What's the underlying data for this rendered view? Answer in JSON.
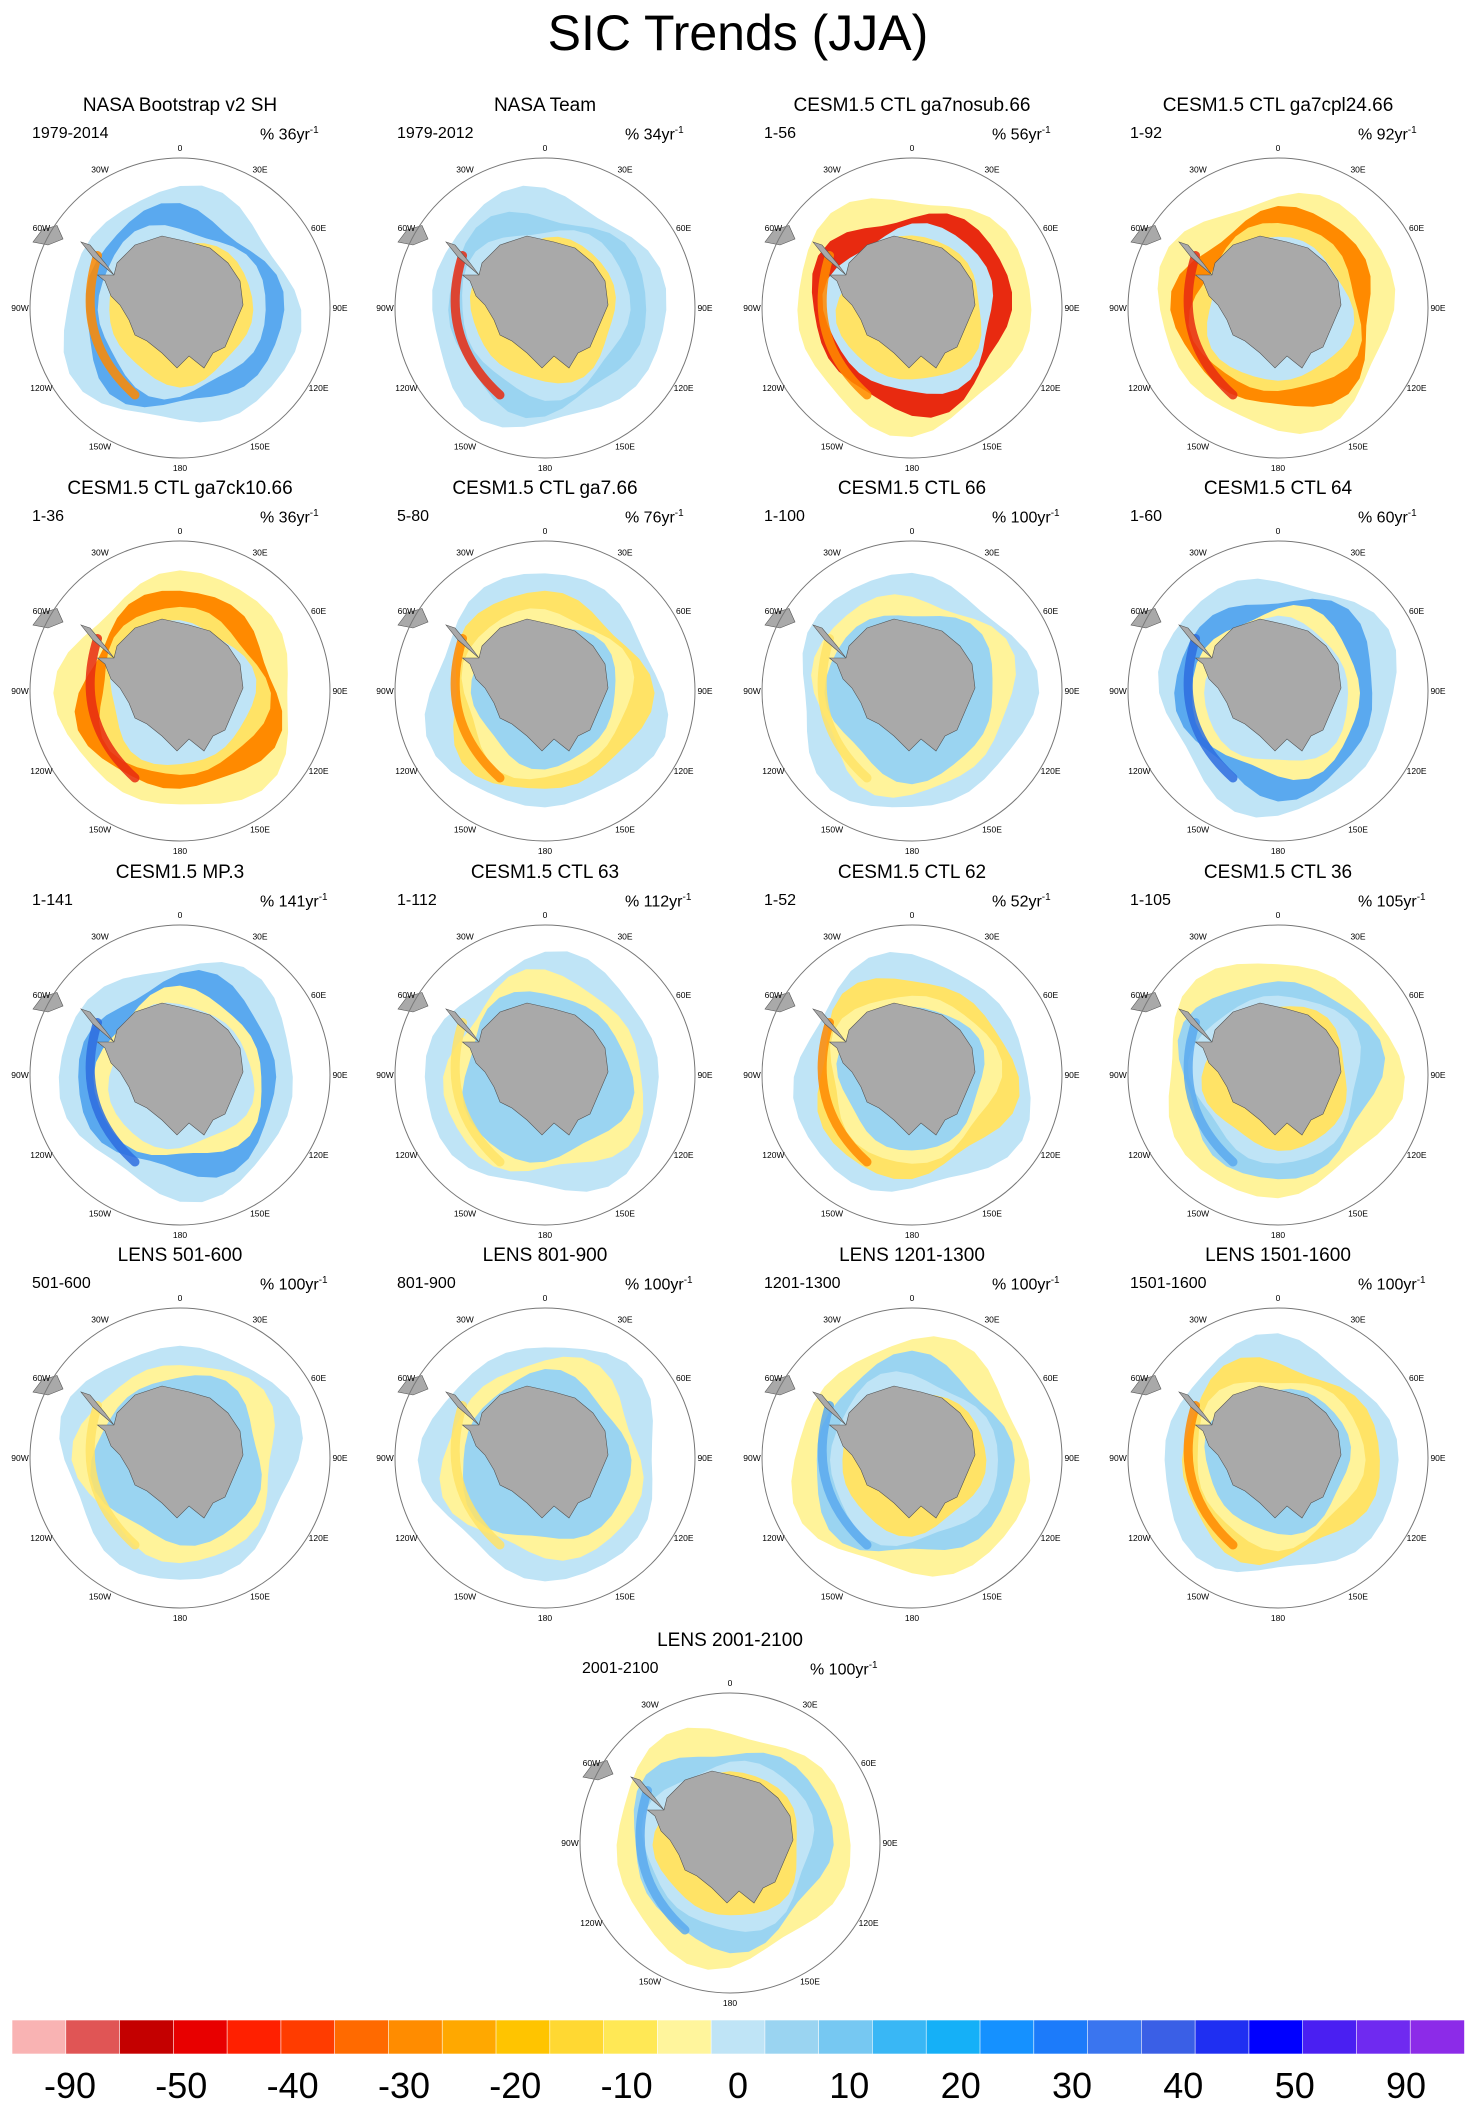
{
  "title": "SIC Trends (JJA)",
  "longitude_labels": [
    "0",
    "30E",
    "60E",
    "90E",
    "120E",
    "150E",
    "180",
    "150W",
    "120W",
    "90W",
    "60W",
    "30W"
  ],
  "panels": [
    {
      "title": "NASA Bootstrap v2 SH",
      "range": "1979-2014",
      "unit_pct": "% 36yr",
      "sup": "-1",
      "style": "obs_blue"
    },
    {
      "title": "NASA Team",
      "range": "1979-2012",
      "unit_pct": "% 34yr",
      "sup": "-1",
      "style": "obs_light"
    },
    {
      "title": "CESM1.5 CTL ga7nosub.66",
      "range": "1-56",
      "unit_pct": "% 56yr",
      "sup": "-1",
      "style": "strong_red"
    },
    {
      "title": "CESM1.5 CTL ga7cpl24.66",
      "range": "1-92",
      "unit_pct": "% 92yr",
      "sup": "-1",
      "style": "orange_ring"
    },
    {
      "title": "CESM1.5 CTL ga7ck10.66",
      "range": "1-36",
      "unit_pct": "% 36yr",
      "sup": "-1",
      "style": "orange_ring"
    },
    {
      "title": "CESM1.5 CTL ga7.66",
      "range": "5-80",
      "unit_pct": "% 76yr",
      "sup": "-1",
      "style": "yellow_orange"
    },
    {
      "title": "CESM1.5 CTL 66",
      "range": "1-100",
      "unit_pct": "% 100yr",
      "sup": "-1",
      "style": "mixed"
    },
    {
      "title": "CESM1.5 CTL 64",
      "range": "1-60",
      "unit_pct": "% 60yr",
      "sup": "-1",
      "style": "blue_ring"
    },
    {
      "title": "CESM1.5 MP.3",
      "range": "1-141",
      "unit_pct": "% 141yr",
      "sup": "-1",
      "style": "blue_ring"
    },
    {
      "title": "CESM1.5 CTL 63",
      "range": "1-112",
      "unit_pct": "% 112yr",
      "sup": "-1",
      "style": "mixed"
    },
    {
      "title": "CESM1.5 CTL 62",
      "range": "1-52",
      "unit_pct": "% 52yr",
      "sup": "-1",
      "style": "yellow_orange"
    },
    {
      "title": "CESM1.5 CTL 36",
      "range": "1-105",
      "unit_pct": "% 105yr",
      "sup": "-1",
      "style": "mixed_blue"
    },
    {
      "title": "LENS 501-600",
      "range": "501-600",
      "unit_pct": "% 100yr",
      "sup": "-1",
      "style": "mixed"
    },
    {
      "title": "LENS 801-900",
      "range": "801-900",
      "unit_pct": "% 100yr",
      "sup": "-1",
      "style": "mixed"
    },
    {
      "title": "LENS 1201-1300",
      "range": "1201-1300",
      "unit_pct": "% 100yr",
      "sup": "-1",
      "style": "mixed_blue"
    },
    {
      "title": "LENS 1501-1600",
      "range": "1501-1600",
      "unit_pct": "% 100yr",
      "sup": "-1",
      "style": "yellow_orange"
    },
    {
      "title": "LENS 2001-2100",
      "range": "2001-2100",
      "unit_pct": "% 100yr",
      "sup": "-1",
      "style": "mixed_blue"
    }
  ],
  "colorbar": {
    "labels": [
      "-90",
      "-50",
      "-40",
      "-30",
      "-20",
      "-10",
      "0",
      "10",
      "20",
      "30",
      "40",
      "50",
      "90"
    ],
    "colors": [
      "#f9b3b3",
      "#e05555",
      "#c40000",
      "#e80000",
      "#ff2000",
      "#ff3c00",
      "#ff6a00",
      "#ff8c00",
      "#ffa800",
      "#ffc400",
      "#ffd832",
      "#ffe855",
      "#fff59c",
      "#bfe4f6",
      "#9ad4f1",
      "#76c8f2",
      "#39b7f5",
      "#15b0f7",
      "#1591ff",
      "#1c7bfa",
      "#3a75ef",
      "#3a5fe6",
      "#1f2ff2",
      "#0000ff",
      "#4a1ff2",
      "#6f2af0",
      "#8c2be8"
    ]
  },
  "palette": {
    "land": "#a9a9a9",
    "landEdge": "#555555",
    "red": "#e82a10",
    "orange": "#ff8a00",
    "yellow": "#ffe366",
    "paleYellow": "#fff39a",
    "paleBlue": "#bfe4f6",
    "lightBlue": "#9ad4f1",
    "blue": "#5aa9ef",
    "darkBlue": "#2e6ddf"
  }
}
